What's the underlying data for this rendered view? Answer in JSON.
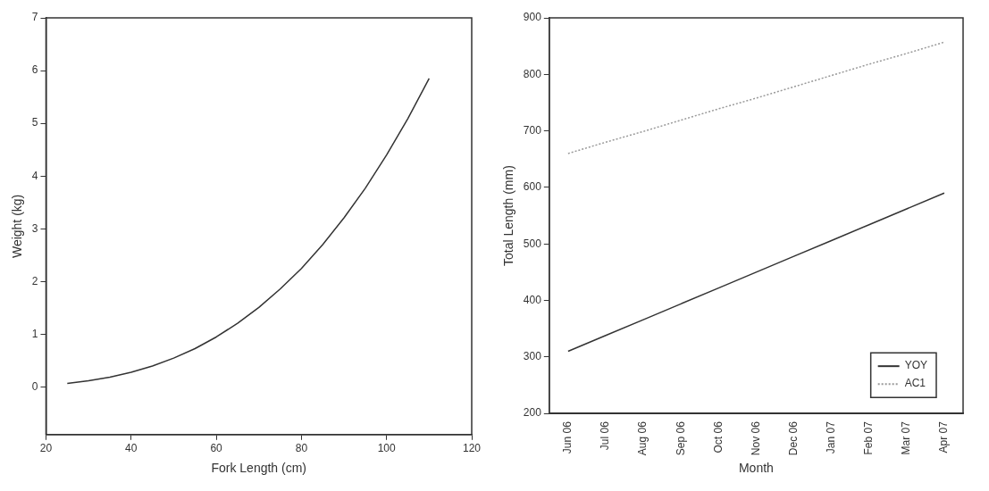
{
  "chart_data": [
    {
      "type": "line",
      "xlabel": "Fork Length (cm)",
      "ylabel": "Weight (kg)",
      "xlim": [
        20,
        120
      ],
      "xticks": [
        20,
        40,
        60,
        80,
        100,
        120
      ],
      "ylim": [
        -0.9,
        7
      ],
      "yticks": [
        0,
        1,
        2,
        3,
        4,
        5,
        6,
        7
      ],
      "grid": false,
      "legend": false,
      "marker": "none",
      "series": [
        {
          "color": "#333333",
          "line_style": "solid",
          "x": [
            25,
            30,
            35,
            40,
            45,
            50,
            55,
            60,
            65,
            70,
            75,
            80,
            85,
            90,
            95,
            100,
            105,
            110
          ],
          "values": [
            0.07,
            0.12,
            0.19,
            0.28,
            0.4,
            0.55,
            0.73,
            0.95,
            1.21,
            1.51,
            1.86,
            2.25,
            2.7,
            3.21,
            3.77,
            4.4,
            5.09,
            5.85
          ]
        }
      ]
    },
    {
      "type": "line",
      "xlabel": "Month",
      "ylabel": "Total Length (mm)",
      "categories": [
        "Jun 06",
        "Jul 06",
        "Aug 06",
        "Sep 06",
        "Oct 06",
        "Nov 06",
        "Dec 06",
        "Jan 07",
        "Feb 07",
        "Mar 07",
        "Apr 07"
      ],
      "ylim": [
        200,
        900
      ],
      "yticks": [
        200,
        300,
        400,
        500,
        600,
        700,
        800,
        900
      ],
      "grid": false,
      "legend": "bottom right",
      "marker": "none",
      "series": [
        {
          "name": "YOY",
          "color": "#333333",
          "line_style": "solid",
          "values": [
            310,
            338,
            366,
            394,
            422,
            450,
            478,
            506,
            534,
            562,
            590
          ]
        },
        {
          "name": "AC1",
          "color": "#999999",
          "line_style": "dotted",
          "values": [
            660,
            680,
            699,
            719,
            739,
            758,
            778,
            798,
            818,
            837,
            857
          ]
        }
      ]
    }
  ]
}
